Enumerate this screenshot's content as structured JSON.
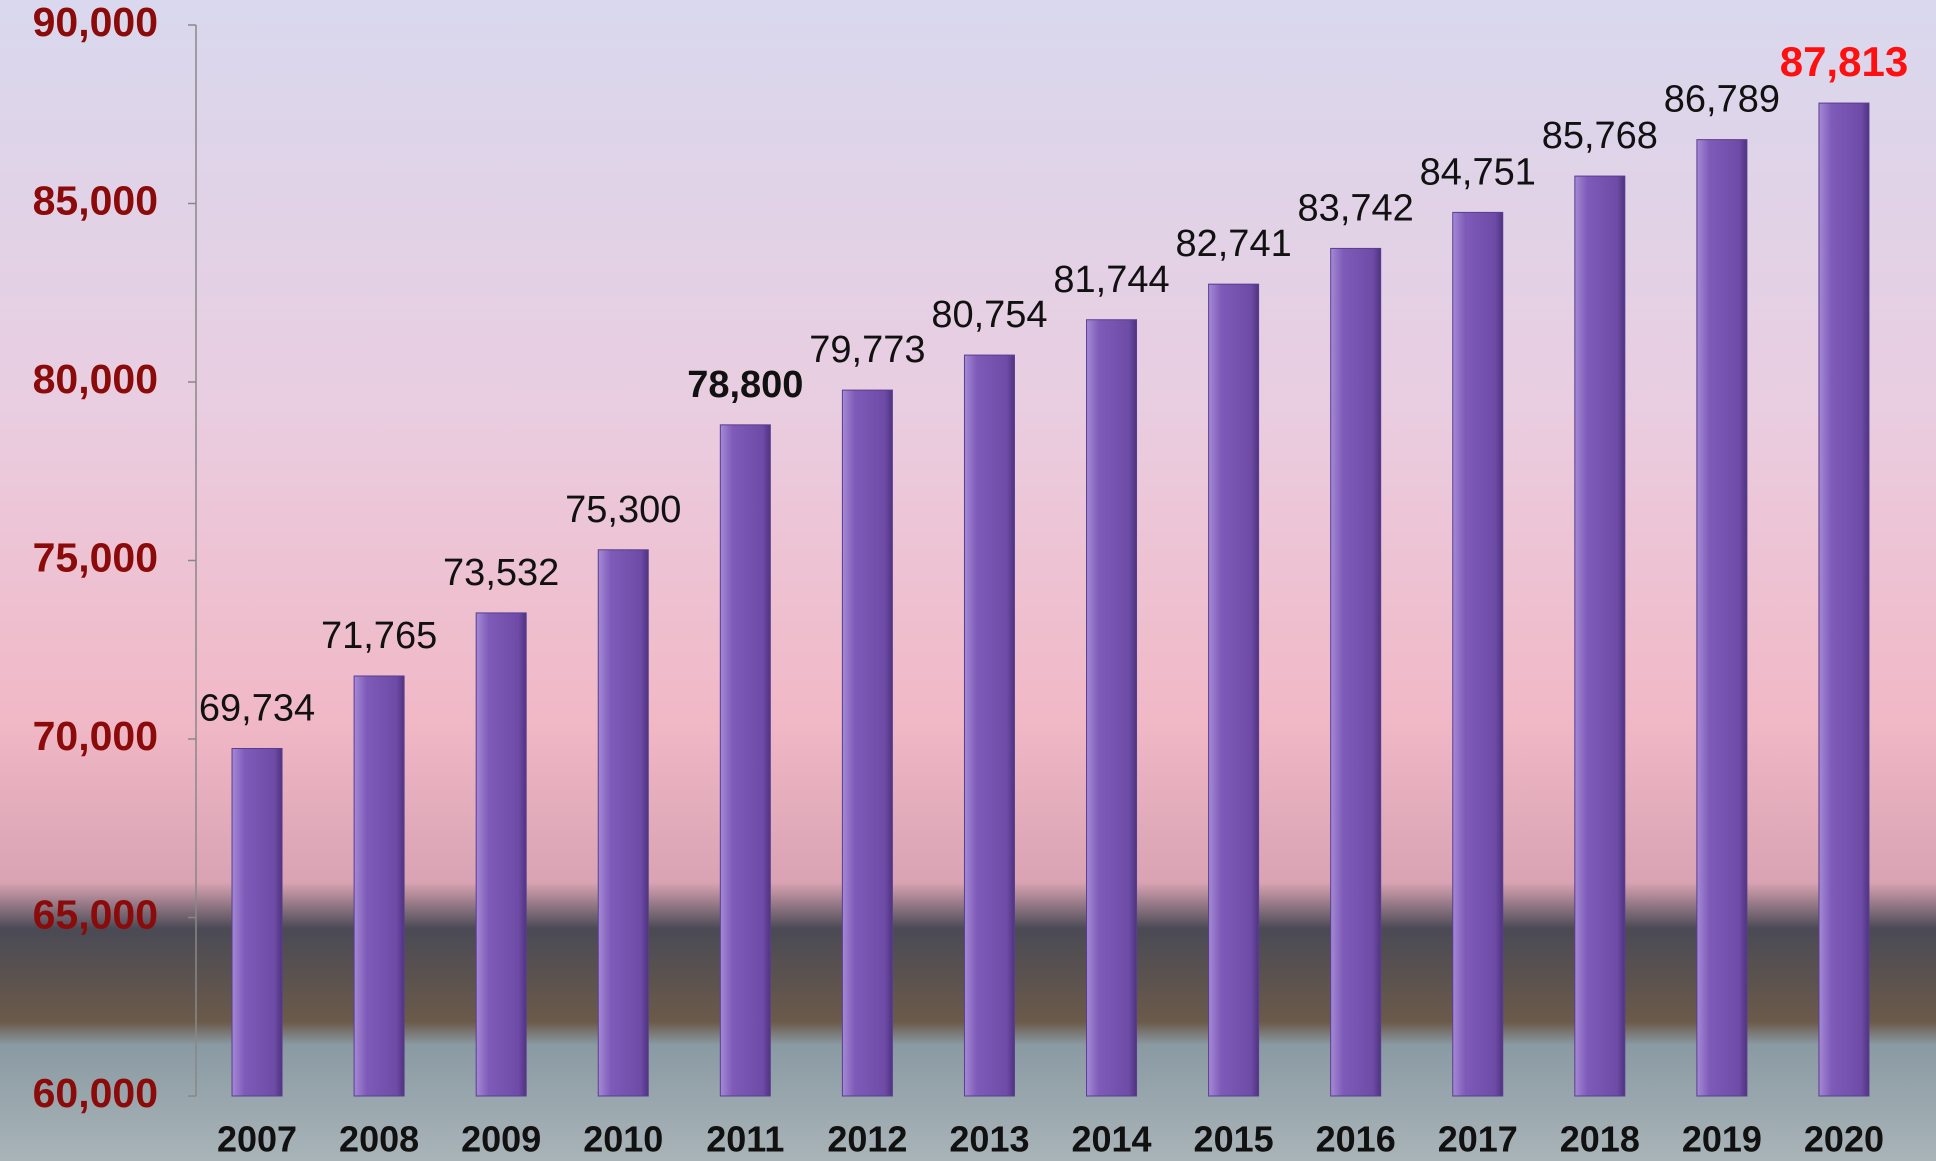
{
  "chart_data": {
    "type": "bar",
    "categories": [
      "2007",
      "2008",
      "2009",
      "2010",
      "2011",
      "2012",
      "2013",
      "2014",
      "2015",
      "2016",
      "2017",
      "2018",
      "2019",
      "2020"
    ],
    "values": [
      69734,
      71765,
      73532,
      75300,
      78800,
      79773,
      80754,
      81744,
      82741,
      83742,
      84751,
      85768,
      86789,
      87813
    ],
    "value_labels": [
      "69,734",
      "71,765",
      "73,532",
      "75,300",
      "78,800",
      "79,773",
      "80,754",
      "81,744",
      "82,741",
      "83,742",
      "84,751",
      "85,768",
      "86,789",
      "87,813"
    ],
    "color": "#7e5bb8",
    "ylim": [
      60000,
      90000
    ],
    "yticks": [
      {
        "value": 60000,
        "label": "60,000"
      },
      {
        "value": 65000,
        "label": "65,000"
      },
      {
        "value": 70000,
        "label": "70,000"
      },
      {
        "value": 75000,
        "label": "75,000"
      },
      {
        "value": 80000,
        "label": "80,000"
      },
      {
        "value": 85000,
        "label": "85,000"
      },
      {
        "value": 90000,
        "label": "90,000"
      }
    ],
    "grid": false
  }
}
